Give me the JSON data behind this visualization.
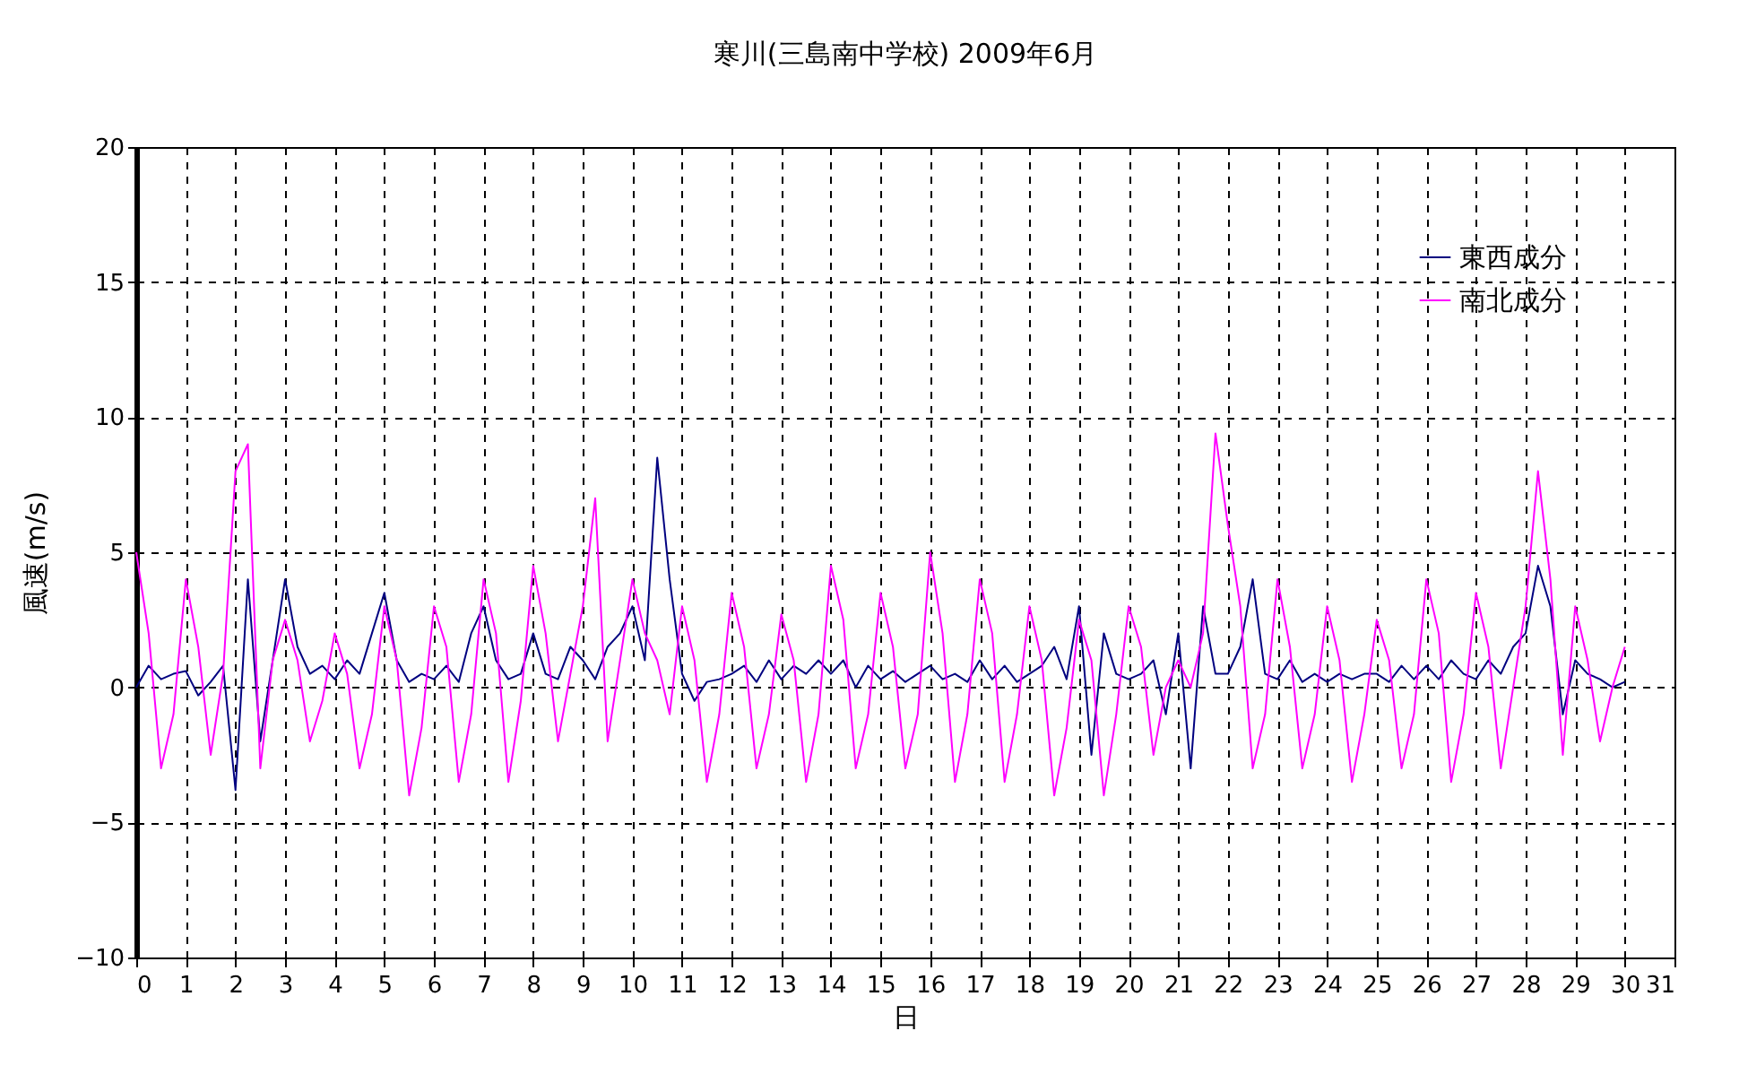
{
  "chart_data": {
    "type": "line",
    "title": "寒川(三島南中学校)  2009年6月",
    "xlabel": "日",
    "ylabel": "風速(m/s)",
    "x": [
      0,
      0.25,
      0.5,
      0.75,
      1,
      1.25,
      1.5,
      1.75,
      2,
      2.25,
      2.5,
      2.75,
      3,
      3.25,
      3.5,
      3.75,
      4,
      4.25,
      4.5,
      4.75,
      5,
      5.25,
      5.5,
      5.75,
      6,
      6.25,
      6.5,
      6.75,
      7,
      7.25,
      7.5,
      7.75,
      8,
      8.25,
      8.5,
      8.75,
      9,
      9.25,
      9.5,
      9.75,
      10,
      10.25,
      10.5,
      10.75,
      11,
      11.25,
      11.5,
      11.75,
      12,
      12.25,
      12.5,
      12.75,
      13,
      13.25,
      13.5,
      13.75,
      14,
      14.25,
      14.5,
      14.75,
      15,
      15.25,
      15.5,
      15.75,
      16,
      16.25,
      16.5,
      16.75,
      17,
      17.25,
      17.5,
      17.75,
      18,
      18.25,
      18.5,
      18.75,
      19,
      19.25,
      19.5,
      19.75,
      20,
      20.25,
      20.5,
      20.75,
      21,
      21.25,
      21.5,
      21.75,
      22,
      22.25,
      22.5,
      22.75,
      23,
      23.25,
      23.5,
      23.75,
      24,
      24.25,
      24.5,
      24.75,
      25,
      25.25,
      25.5,
      25.75,
      26,
      26.25,
      26.5,
      26.75,
      27,
      27.25,
      27.5,
      27.75,
      28,
      28.25,
      28.5,
      28.75,
      29,
      29.25,
      29.5,
      29.75,
      30
    ],
    "series": [
      {
        "name": "東西成分",
        "color": "#000080",
        "values": [
          0,
          0.8,
          0.3,
          0.5,
          0.6,
          -0.3,
          0.2,
          0.8,
          -3.8,
          4,
          -2,
          1,
          4,
          1.5,
          0.5,
          0.8,
          0.3,
          1,
          0.5,
          2,
          3.5,
          1,
          0.2,
          0.5,
          0.3,
          0.8,
          0.2,
          2,
          3,
          1,
          0.3,
          0.5,
          2,
          0.5,
          0.3,
          1.5,
          1,
          0.3,
          1.5,
          2,
          3,
          1,
          8.5,
          4,
          0.5,
          -0.5,
          0.2,
          0.3,
          0.5,
          0.8,
          0.2,
          1,
          0.3,
          0.8,
          0.5,
          1,
          0.5,
          1,
          0,
          0.8,
          0.3,
          0.6,
          0.2,
          0.5,
          0.8,
          0.3,
          0.5,
          0.2,
          1,
          0.3,
          0.8,
          0.2,
          0.5,
          0.8,
          1.5,
          0.3,
          3,
          -2.5,
          2,
          0.5,
          0.3,
          0.5,
          1,
          -1,
          2,
          -3,
          3,
          0.5,
          0.5,
          1.5,
          4,
          0.5,
          0.3,
          1,
          0.2,
          0.5,
          0.2,
          0.5,
          0.3,
          0.5,
          0.5,
          0.2,
          0.8,
          0.3,
          0.8,
          0.3,
          1,
          0.5,
          0.3,
          1,
          0.5,
          1.5,
          2,
          4.5,
          3,
          -1,
          1,
          0.5,
          0.3,
          0,
          0.2
        ]
      },
      {
        "name": "南北成分",
        "color": "#ff00ff",
        "values": [
          5,
          2,
          -3,
          -1,
          4,
          1.5,
          -2.5,
          0.5,
          8,
          9,
          -3,
          1,
          2.5,
          1,
          -2,
          -0.5,
          2,
          0.5,
          -3,
          -1,
          3,
          1,
          -4,
          -1.5,
          3,
          1.5,
          -3.5,
          -1,
          4,
          2,
          -3.5,
          -0.5,
          4.5,
          2,
          -2,
          0.5,
          3,
          7,
          -2,
          1,
          4,
          2,
          1,
          -1,
          3,
          1,
          -3.5,
          -1,
          3.5,
          1.5,
          -3,
          -1,
          2.7,
          1,
          -3.5,
          -1,
          4.5,
          2.5,
          -3,
          -1,
          3.5,
          1.5,
          -3,
          -1,
          5,
          2,
          -3.5,
          -1,
          4,
          2,
          -3.5,
          -1,
          3,
          1,
          -4,
          -1.5,
          2.5,
          1,
          -4,
          -1,
          3,
          1.5,
          -2.5,
          0,
          1,
          0,
          2,
          9.4,
          6,
          3,
          -3,
          -1,
          4,
          1.5,
          -3,
          -1,
          3,
          1,
          -3.5,
          -1,
          2.5,
          1,
          -3,
          -1,
          4,
          2,
          -3.5,
          -1,
          3.5,
          1.5,
          -3,
          0,
          3,
          8,
          4,
          -2.5,
          3,
          1,
          -2,
          0,
          1.5
        ]
      }
    ],
    "xlim": [
      0,
      31
    ],
    "xticks": [
      0,
      1,
      2,
      3,
      4,
      5,
      6,
      7,
      8,
      9,
      10,
      11,
      12,
      13,
      14,
      15,
      16,
      17,
      18,
      19,
      20,
      21,
      22,
      23,
      24,
      25,
      26,
      27,
      28,
      29,
      30,
      31
    ],
    "ylim": [
      -10,
      20
    ],
    "yticks": [
      -10,
      -5,
      0,
      5,
      10,
      15,
      20
    ],
    "grid": true,
    "legend": "top right",
    "line_style": "solid"
  }
}
